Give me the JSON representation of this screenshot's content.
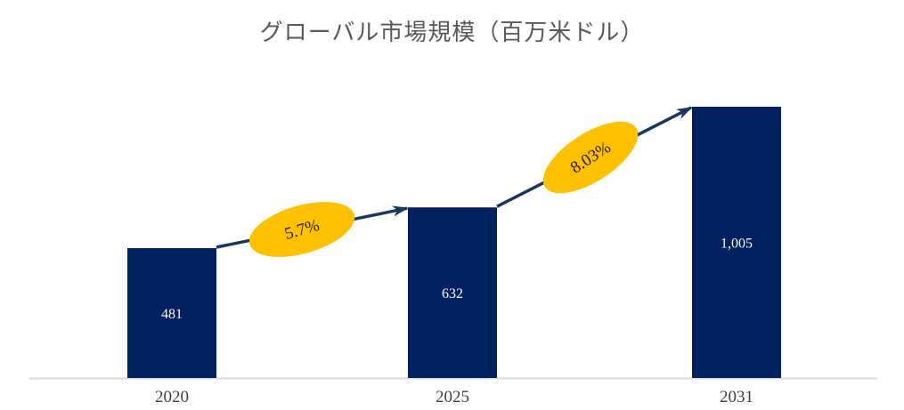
{
  "chart_data": {
    "type": "bar",
    "title": "グローバル市場規模（百万米ドル）",
    "categories": [
      "2020",
      "2025",
      "2031"
    ],
    "values": [
      481,
      632,
      1005
    ],
    "value_labels": [
      "481",
      "632",
      "1,005"
    ],
    "growth_annotations": [
      {
        "label": "5.7%",
        "from": "2020",
        "to": "2025"
      },
      {
        "label": "8.03%",
        "from": "2025",
        "to": "2031"
      }
    ],
    "xlabel": "",
    "ylabel": "",
    "ylim": [
      0,
      1005
    ],
    "grid": false,
    "legend": false,
    "colors": {
      "bar": "#002060",
      "arrow": "#17375E",
      "annotation_fill": "#FFC000",
      "annotation_text": "#202020",
      "value_label_text": "#FFFFFF",
      "title_text": "#595959",
      "axis_label_text": "#404040",
      "axis_line": "#D9D9D9",
      "background": "#FFFFFF"
    }
  }
}
